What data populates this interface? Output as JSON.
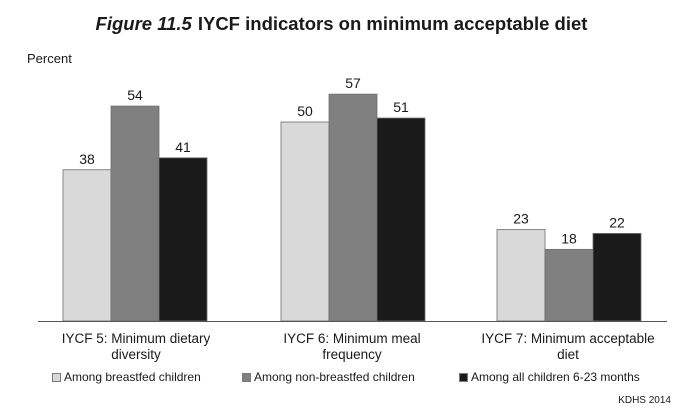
{
  "figure": {
    "number": "Figure 11.5",
    "title": "IYCF indicators on minimum acceptable diet",
    "source": "KDHS 2014"
  },
  "chart_data": {
    "type": "bar",
    "title": "Figure 11.5 IYCF indicators on minimum acceptable diet",
    "ylabel": "Percent",
    "xlabel": "",
    "ylim": [
      0,
      60
    ],
    "grid": false,
    "legend_position": "bottom",
    "categories": [
      [
        "IYCF 5: Minimum dietary",
        "diversity"
      ],
      [
        "IYCF 6: Minimum meal",
        "frequency"
      ],
      [
        "IYCF 7: Minimum acceptable",
        "diet"
      ]
    ],
    "series": [
      {
        "name": "Among breastfed children",
        "color": "#d9d9d9",
        "values": [
          38,
          50,
          23
        ]
      },
      {
        "name": "Among non-breastfed children",
        "color": "#808080",
        "values": [
          54,
          57,
          18
        ]
      },
      {
        "name": "Among all children 6-23 months",
        "color": "#1a1a1a",
        "values": [
          41,
          51,
          22
        ]
      }
    ]
  }
}
